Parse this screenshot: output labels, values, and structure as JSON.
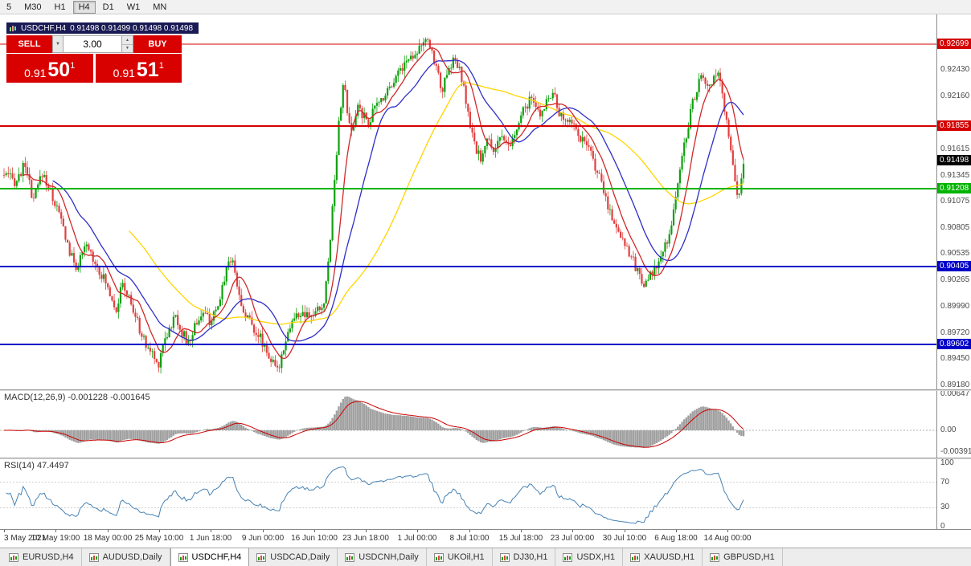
{
  "window": {
    "toolbar_timeframes": [
      "5",
      "M30",
      "H1",
      "H4",
      "D1",
      "W1",
      "MN"
    ],
    "active_timeframe": "H4"
  },
  "chart_header": {
    "symbol": "USDCHF,H4",
    "ohlc": "0.91498 0.91499 0.91498 0.91498"
  },
  "trade_widget": {
    "sell_label": "SELL",
    "buy_label": "BUY",
    "volume": "3.00",
    "bid": {
      "big": "0.91",
      "pips": "50",
      "pipette": "1"
    },
    "ask": {
      "big": "0.91",
      "pips": "51",
      "pipette": "1"
    }
  },
  "icons": {
    "dropdown": "▼",
    "spin_up": "▲",
    "spin_down": "▼"
  },
  "colors": {
    "candle_up": "#0fa00f",
    "candle_down": "#e04040",
    "ma_fast_red": "#d02828",
    "ma_medium_blue": "#2e2ec8",
    "ma_slow_yellow": "#ffd500",
    "macd_histogram": "#a0a0a0",
    "macd_signal": "#cc0000",
    "rsi_line": "#4682b4",
    "hline_red": "#d40000",
    "hline_green": "#00b400",
    "hline_blue": "#0000c8",
    "current_price_badge": "#000000",
    "trade_red": "#d90000",
    "title_navy": "#1a1a55"
  },
  "chart_data": {
    "type": "candlestick",
    "symbol": "USDCHF",
    "timeframe": "H4",
    "current_price": 0.91498,
    "y_range": [
      0.89139,
      0.93005
    ],
    "price_axis_ticks": [
      "0.92430",
      "0.92160",
      "0.91615",
      "0.91345",
      "0.91075",
      "0.90805",
      "0.90535",
      "0.90265",
      "0.89990",
      "0.89720",
      "0.89450",
      "0.89180"
    ],
    "price_badges": [
      {
        "label": "0.92699",
        "price": 0.92699,
        "color": "#d40000",
        "line_width": 1
      },
      {
        "label": "0.91855",
        "price": 0.91855,
        "color": "#d40000",
        "line_width": 2
      },
      {
        "label": "0.91498",
        "price": 0.91498,
        "color": "#000000",
        "line_width": 0
      },
      {
        "label": "0.91208",
        "price": 0.91208,
        "color": "#00b400",
        "line_width": 2
      },
      {
        "label": "0.90405",
        "price": 0.90405,
        "color": "#0000c8",
        "line_width": 2
      },
      {
        "label": "0.89602",
        "price": 0.89602,
        "color": "#0000c8",
        "line_width": 2
      }
    ],
    "candle_count": 350,
    "price_path": [
      [
        0.0,
        0.9135
      ],
      [
        0.016,
        0.9128
      ],
      [
        0.03,
        0.9148
      ],
      [
        0.038,
        0.9105
      ],
      [
        0.052,
        0.9138
      ],
      [
        0.064,
        0.9115
      ],
      [
        0.076,
        0.9092
      ],
      [
        0.09,
        0.9052
      ],
      [
        0.098,
        0.904
      ],
      [
        0.112,
        0.9062
      ],
      [
        0.125,
        0.9043
      ],
      [
        0.141,
        0.9018
      ],
      [
        0.152,
        0.8997
      ],
      [
        0.16,
        0.9022
      ],
      [
        0.168,
        0.901
      ],
      [
        0.178,
        0.8988
      ],
      [
        0.19,
        0.8962
      ],
      [
        0.201,
        0.895
      ],
      [
        0.208,
        0.8938
      ],
      [
        0.216,
        0.8965
      ],
      [
        0.223,
        0.8975
      ],
      [
        0.232,
        0.899
      ],
      [
        0.241,
        0.8972
      ],
      [
        0.25,
        0.896
      ],
      [
        0.258,
        0.898
      ],
      [
        0.268,
        0.8993
      ],
      [
        0.278,
        0.8985
      ],
      [
        0.288,
        0.8992
      ],
      [
        0.298,
        0.903
      ],
      [
        0.304,
        0.905
      ],
      [
        0.312,
        0.904
      ],
      [
        0.32,
        0.9
      ],
      [
        0.33,
        0.8988
      ],
      [
        0.34,
        0.8975
      ],
      [
        0.352,
        0.896
      ],
      [
        0.362,
        0.8942
      ],
      [
        0.37,
        0.8932
      ],
      [
        0.38,
        0.8965
      ],
      [
        0.39,
        0.8985
      ],
      [
        0.4,
        0.8992
      ],
      [
        0.412,
        0.8987
      ],
      [
        0.424,
        0.8995
      ],
      [
        0.433,
        0.9002
      ],
      [
        0.44,
        0.906
      ],
      [
        0.447,
        0.913
      ],
      [
        0.453,
        0.9195
      ],
      [
        0.46,
        0.9232
      ],
      [
        0.466,
        0.9185
      ],
      [
        0.472,
        0.9178
      ],
      [
        0.478,
        0.9208
      ],
      [
        0.486,
        0.9195
      ],
      [
        0.494,
        0.919
      ],
      [
        0.502,
        0.9205
      ],
      [
        0.512,
        0.9215
      ],
      [
        0.522,
        0.9228
      ],
      [
        0.532,
        0.924
      ],
      [
        0.544,
        0.9252
      ],
      [
        0.556,
        0.9262
      ],
      [
        0.566,
        0.9272
      ],
      [
        0.576,
        0.9268
      ],
      [
        0.584,
        0.9248
      ],
      [
        0.592,
        0.9222
      ],
      [
        0.6,
        0.9238
      ],
      [
        0.608,
        0.9256
      ],
      [
        0.616,
        0.9242
      ],
      [
        0.624,
        0.9215
      ],
      [
        0.63,
        0.9185
      ],
      [
        0.638,
        0.916
      ],
      [
        0.646,
        0.9152
      ],
      [
        0.654,
        0.9172
      ],
      [
        0.662,
        0.916
      ],
      [
        0.67,
        0.9176
      ],
      [
        0.678,
        0.9164
      ],
      [
        0.686,
        0.9166
      ],
      [
        0.694,
        0.9183
      ],
      [
        0.702,
        0.92
      ],
      [
        0.71,
        0.9212
      ],
      [
        0.718,
        0.9206
      ],
      [
        0.726,
        0.9195
      ],
      [
        0.734,
        0.9215
      ],
      [
        0.742,
        0.922
      ],
      [
        0.75,
        0.92
      ],
      [
        0.758,
        0.9188
      ],
      [
        0.766,
        0.9196
      ],
      [
        0.774,
        0.918
      ],
      [
        0.782,
        0.917
      ],
      [
        0.79,
        0.9162
      ],
      [
        0.798,
        0.9148
      ],
      [
        0.806,
        0.913
      ],
      [
        0.814,
        0.911
      ],
      [
        0.822,
        0.9092
      ],
      [
        0.83,
        0.9078
      ],
      [
        0.838,
        0.9068
      ],
      [
        0.846,
        0.9055
      ],
      [
        0.854,
        0.904
      ],
      [
        0.862,
        0.9028
      ],
      [
        0.868,
        0.9022
      ],
      [
        0.874,
        0.903
      ],
      [
        0.882,
        0.904
      ],
      [
        0.89,
        0.9052
      ],
      [
        0.898,
        0.907
      ],
      [
        0.906,
        0.91
      ],
      [
        0.914,
        0.914
      ],
      [
        0.922,
        0.9175
      ],
      [
        0.93,
        0.9205
      ],
      [
        0.938,
        0.9228
      ],
      [
        0.946,
        0.9237
      ],
      [
        0.952,
        0.9222
      ],
      [
        0.958,
        0.923
      ],
      [
        0.964,
        0.9241
      ],
      [
        0.972,
        0.9215
      ],
      [
        0.98,
        0.9175
      ],
      [
        0.986,
        0.914
      ],
      [
        0.992,
        0.9108
      ],
      [
        1.0,
        0.915
      ]
    ],
    "ma_lines": [
      {
        "name": "slow",
        "color": "#ffd500",
        "period": 60
      },
      {
        "name": "medium",
        "color": "#2e2ec8",
        "period": 24
      },
      {
        "name": "fast",
        "color": "#d02828",
        "period": 10
      }
    ],
    "x_labels": [
      "3 May 2021",
      "10 May 19:00",
      "18 May 00:00",
      "25 May 10:00",
      "1 Jun 18:00",
      "9 Jun 00:00",
      "16 Jun 10:00",
      "23 Jun 18:00",
      "1 Jul 00:00",
      "8 Jul 10:00",
      "15 Jul 18:00",
      "23 Jul 00:00",
      "30 Jul 10:00",
      "6 Aug 18:00",
      "14 Aug 00:00"
    ],
    "indicators": {
      "macd": {
        "label": "MACD(12,26,9) -0.001228 -0.001645",
        "params": [
          12,
          26,
          9
        ],
        "current_values": [
          -0.001228,
          -0.001645
        ],
        "axis_labels": [
          "0.00647",
          "0.00",
          "-0.00391"
        ],
        "axis_values": [
          0.00647,
          0,
          -0.00391
        ]
      },
      "rsi": {
        "label": "RSI(14) 47.4497",
        "period": 14,
        "current_value": 47.4497,
        "axis_labels": [
          "100",
          "70",
          "30",
          "0"
        ],
        "axis_values": [
          100,
          70,
          30,
          0
        ],
        "levels": [
          70,
          30
        ]
      }
    }
  },
  "bottom_tabs": {
    "active": "USDCHF,H4",
    "items": [
      {
        "label": "EURUSD,H4"
      },
      {
        "label": "AUDUSD,Daily"
      },
      {
        "label": "USDCHF,H4"
      },
      {
        "label": "USDCAD,Daily"
      },
      {
        "label": "USDCNH,Daily"
      },
      {
        "label": "UKOil,H1"
      },
      {
        "label": "DJ30,H1"
      },
      {
        "label": "USDX,H1"
      },
      {
        "label": "XAUUSD,H1"
      },
      {
        "label": "GBPUSD,H1"
      }
    ]
  }
}
